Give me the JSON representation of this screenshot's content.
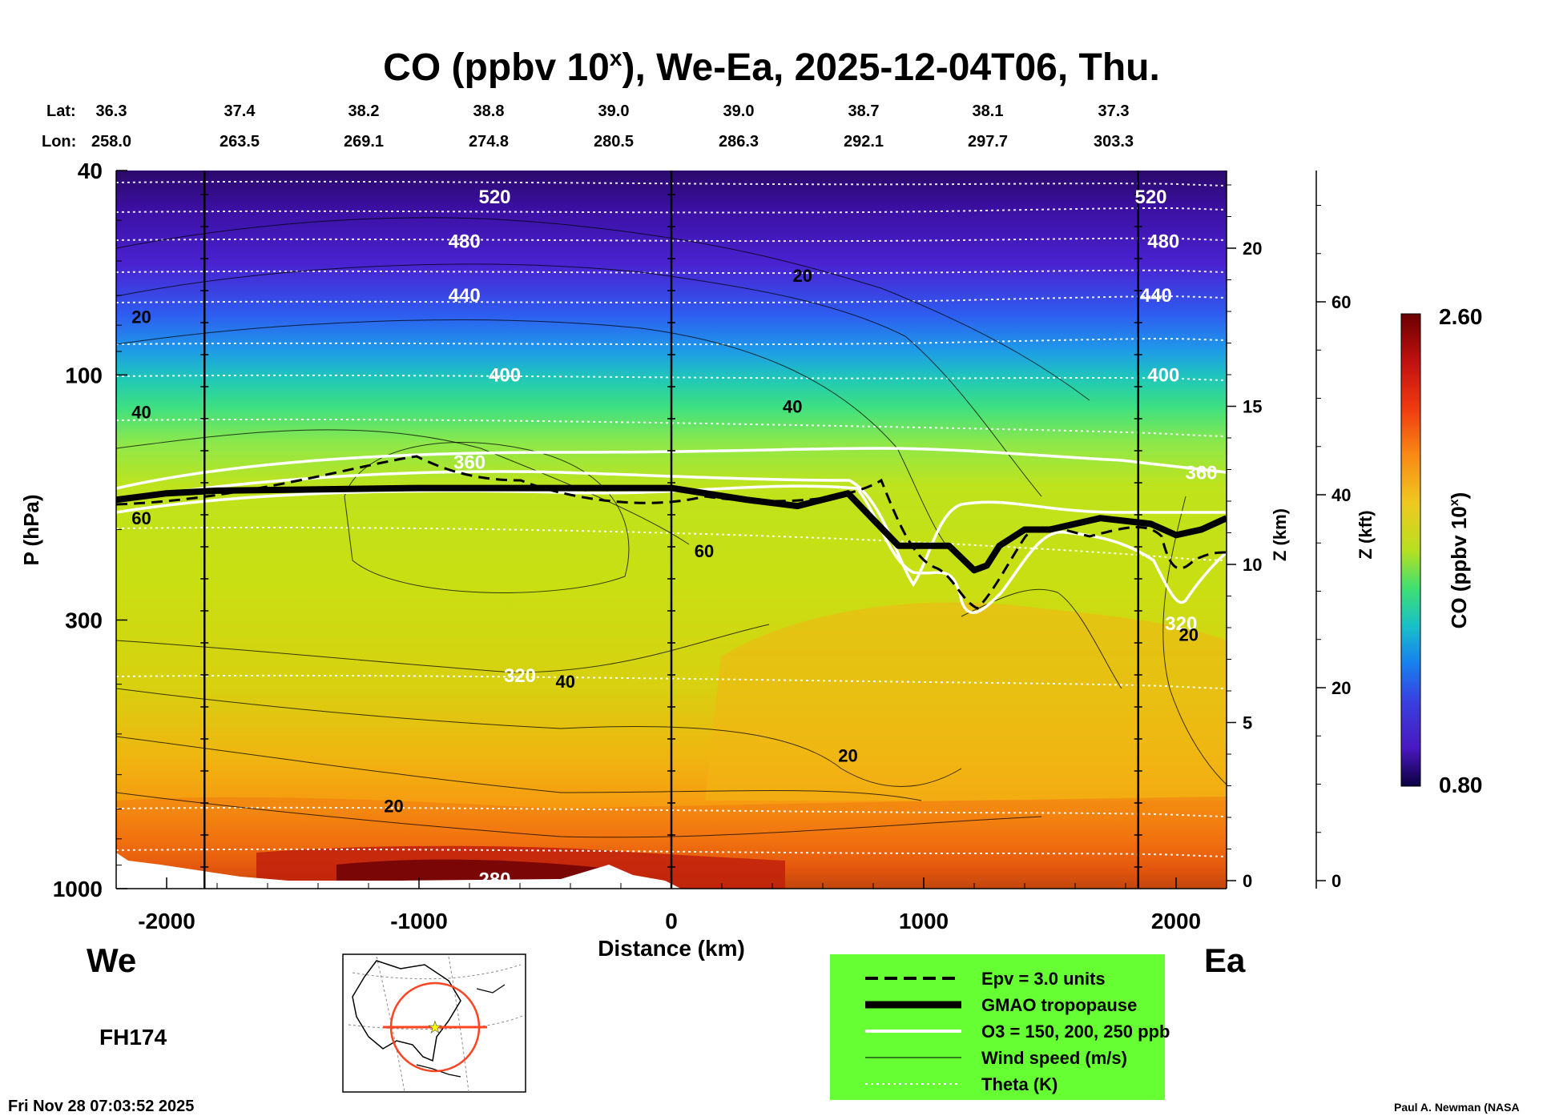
{
  "title": "CO (ppbv 10",
  "title_sup": "x",
  "title_rest": "), We-Ea, 2025-12-04T06, Thu.",
  "lat_label": "Lat:",
  "lon_label": "Lon:",
  "lat_values": [
    "36.3",
    "37.4",
    "38.2",
    "38.8",
    "39.0",
    "39.0",
    "38.7",
    "38.1",
    "37.3"
  ],
  "lon_values": [
    "258.0",
    "263.5",
    "269.1",
    "274.8",
    "280.5",
    "286.3",
    "292.1",
    "297.7",
    "303.3"
  ],
  "left_label": "We",
  "right_label": "Ea",
  "forecast_hour": "FH174",
  "timestamp": "Fri Nov 28 07:03:52 2025",
  "credit": "Paul A. Newman (NASA",
  "legend": [
    {
      "style": "dashed",
      "label": "Epv = 3.0 units"
    },
    {
      "style": "thick",
      "label": "GMAO tropopause"
    },
    {
      "style": "white",
      "label": "O3 = 150, 200, 250 ppb"
    },
    {
      "style": "thin",
      "label": "Wind speed (m/s)"
    },
    {
      "style": "dotted",
      "label": "Theta (K)"
    }
  ],
  "colors": {
    "legend_bg": "#66ff33",
    "map_circle": "#ff4422",
    "map_star": "#ffff00"
  },
  "chart_data": {
    "type": "heatmap",
    "title": "CO (ppbv 10^x), We-Ea, 2025-12-04T06, Thu.",
    "xlabel": "Distance (km)",
    "ylabel": "P (hPa)",
    "y2label": "Z (km)",
    "y3label": "Z (kft)",
    "colorbar_label": "CO (ppbv 10^x)",
    "xlim": [
      -2200,
      2200
    ],
    "ylim": [
      1000,
      40
    ],
    "y_scale": "log",
    "x_ticks": [
      -2000,
      -1000,
      0,
      1000,
      2000
    ],
    "x_tick_labels": [
      "-2000",
      "-1000",
      "0",
      "1000",
      "2000"
    ],
    "y_ticks": [
      40,
      100,
      300,
      1000
    ],
    "y_tick_labels": [
      "40",
      "100",
      "300",
      "1000"
    ],
    "z_km_ticks": [
      0,
      5,
      10,
      15,
      20
    ],
    "z_km_tick_labels": [
      "0",
      "5",
      "10",
      "15",
      "20"
    ],
    "z_kft_ticks": [
      0,
      20,
      40,
      60
    ],
    "z_kft_tick_labels": [
      "0",
      "20",
      "40",
      "60"
    ],
    "colorbar_range": [
      0.8,
      2.6
    ],
    "colorbar_labels": [
      "2.60",
      "0.80"
    ],
    "vertical_lines_km": [
      -1850,
      0,
      1850
    ],
    "gmao_tropopause_hpa": {
      "x": [
        -2200,
        -2000,
        -1800,
        -1000,
        0,
        300,
        500,
        700,
        900,
        1100,
        1200,
        1250,
        1300,
        1400,
        1500,
        1700,
        1900,
        2000,
        2100,
        2200
      ],
      "y": [
        175,
        170,
        168,
        166,
        166,
        175,
        180,
        170,
        215,
        215,
        240,
        235,
        215,
        200,
        200,
        190,
        195,
        205,
        200,
        190
      ]
    },
    "theta_labels": [
      {
        "label": "520",
        "x": -700,
        "y": 45
      },
      {
        "label": "480",
        "x": -820,
        "y": 55
      },
      {
        "label": "440",
        "x": -820,
        "y": 70
      },
      {
        "label": "400",
        "x": -660,
        "y": 100
      },
      {
        "label": "360",
        "x": -800,
        "y": 148
      },
      {
        "label": "320",
        "x": -600,
        "y": 385
      },
      {
        "label": "280",
        "x": -700,
        "y": 960
      },
      {
        "label": "520",
        "x": 1900,
        "y": 45
      },
      {
        "label": "480",
        "x": 1950,
        "y": 55
      },
      {
        "label": "440",
        "x": 1920,
        "y": 70
      },
      {
        "label": "400",
        "x": 1950,
        "y": 100
      },
      {
        "label": "360",
        "x": 2100,
        "y": 155
      },
      {
        "label": "320",
        "x": 2020,
        "y": 305
      }
    ],
    "wind_labels": [
      {
        "label": "20",
        "x": -2100,
        "y": 77
      },
      {
        "label": "40",
        "x": -2100,
        "y": 118
      },
      {
        "label": "60",
        "x": -2100,
        "y": 190
      },
      {
        "label": "20",
        "x": 520,
        "y": 64
      },
      {
        "label": "40",
        "x": 480,
        "y": 115
      },
      {
        "label": "60",
        "x": 130,
        "y": 220
      },
      {
        "label": "40",
        "x": -420,
        "y": 395
      },
      {
        "label": "20",
        "x": -1100,
        "y": 690
      },
      {
        "label": "20",
        "x": 700,
        "y": 550
      },
      {
        "label": "20",
        "x": 2050,
        "y": 320
      }
    ]
  }
}
